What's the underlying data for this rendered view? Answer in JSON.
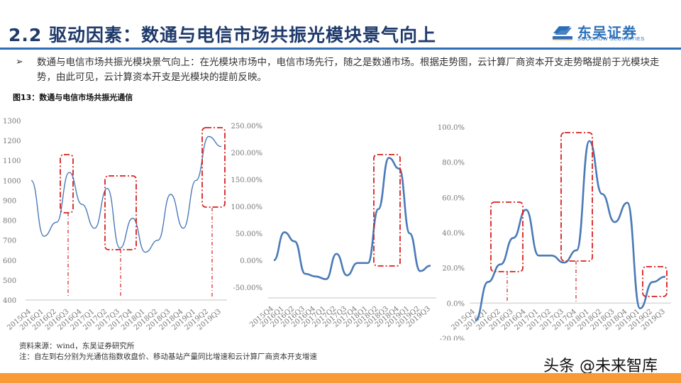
{
  "header": {
    "title": "2.2 驱动因素：数通与电信市场共振光模块景气向上",
    "logo_cn": "东吴证券",
    "logo_en": "SOOCHOW SECURITIES",
    "accent_color": "#2f6fb5",
    "title_color": "#1f3a6b"
  },
  "body": {
    "bullet_icon": "➢",
    "paragraph": "数通与电信市场共振光模块景气向上：在光模块市场中，电信市场先行，随之是数通市场。根据走势图，云计算厂商资本开支走势略提前于光模块走势，由此可见，云计算资本开支是光模块的提前反映。",
    "figure_title": "图13：数通与电信市场共振光通信"
  },
  "footer": {
    "source": "资料来源：wind，东吴证券研究所",
    "note": "注：自左到右分别为光通信指数收盘价、移动基站产量同比增速和云计算厂商资本开支增速",
    "watermark": "头条 @未来智库",
    "bar_color": "#f89a35"
  },
  "chart_data": [
    {
      "type": "line",
      "title": "光通信指数收盘价",
      "xlabel": "",
      "ylabel": "",
      "ylim": [
        400,
        1300
      ],
      "yticks": [
        "400",
        "500",
        "600",
        "700",
        "800",
        "900",
        "1000",
        "1100",
        "1200",
        "1300"
      ],
      "categories": [
        "2015Q4",
        "2016Q1",
        "2016Q2",
        "2016Q3",
        "2016Q4",
        "2017Q1",
        "2017Q2",
        "2017Q3",
        "2017Q4",
        "2018Q1",
        "2018Q2",
        "2018Q3",
        "2018Q4",
        "2019Q1",
        "2019Q2",
        "2019Q3"
      ],
      "series": [
        {
          "name": "光通信指数收盘价",
          "values": [
            1000,
            720,
            790,
            1040,
            880,
            760,
            960,
            660,
            810,
            640,
            700,
            930,
            760,
            1000,
            1220,
            1170
          ]
        }
      ],
      "line_color": "#4a7ab8",
      "annotations": [
        "dashed red box 2016Q3 peak",
        "dashed red box 2017Q2-Q3",
        "dashed red box 2019Q1-Q3"
      ]
    },
    {
      "type": "line",
      "title": "移动基站产量同比增速",
      "ylim": [
        -50,
        250
      ],
      "yticks": [
        "-50.00%",
        "0.00%",
        "50.00%",
        "100.00%",
        "150.00%",
        "200.00%",
        "250.00%"
      ],
      "categories": [
        "2015Q4",
        "2016Q1",
        "2016Q2",
        "2016Q3",
        "2016Q4",
        "2017Q1",
        "2017Q2",
        "2017Q3",
        "2017Q4",
        "2018Q1",
        "2018Q2",
        "2018Q3",
        "2018Q4",
        "2019Q1",
        "2019Q2",
        "2019Q3"
      ],
      "series": [
        {
          "name": "移动基站产量同比增速(%)",
          "values": [
            0,
            52,
            35,
            -25,
            -30,
            -35,
            12,
            -28,
            -5,
            -5,
            95,
            190,
            170,
            50,
            -20,
            -10
          ]
        }
      ],
      "line_color": "#4a7ab8",
      "annotations": [
        "dashed red box 2018Q1-Q3"
      ]
    },
    {
      "type": "line",
      "title": "云计算厂商资本开支增速",
      "ylim": [
        -20,
        100
      ],
      "yticks": [
        "-20.0%",
        "0.0%",
        "20.0%",
        "40.0%",
        "60.0%",
        "80.0%",
        "100.0%"
      ],
      "categories": [
        "2015Q4",
        "2016Q1",
        "2016Q2",
        "2016Q3",
        "2016Q4",
        "2017Q1",
        "2017Q2",
        "2017Q3",
        "2017Q4",
        "2018Q1",
        "2018Q2",
        "2018Q3",
        "2018Q4",
        "2019Q1",
        "2019Q2",
        "2019Q3"
      ],
      "series": [
        {
          "name": "云计算厂商资本开支增速(%)",
          "values": [
            -10,
            12,
            22,
            37,
            53,
            27,
            27,
            23,
            30,
            92,
            62,
            46,
            57,
            -3,
            12,
            15
          ]
        }
      ],
      "line_color": "#4a7ab8",
      "annotations": [
        "dashed red box 2016Q2-Q4",
        "dashed red box 2017Q3-2018Q1",
        "dashed red box 2019Q1-Q2"
      ]
    }
  ]
}
